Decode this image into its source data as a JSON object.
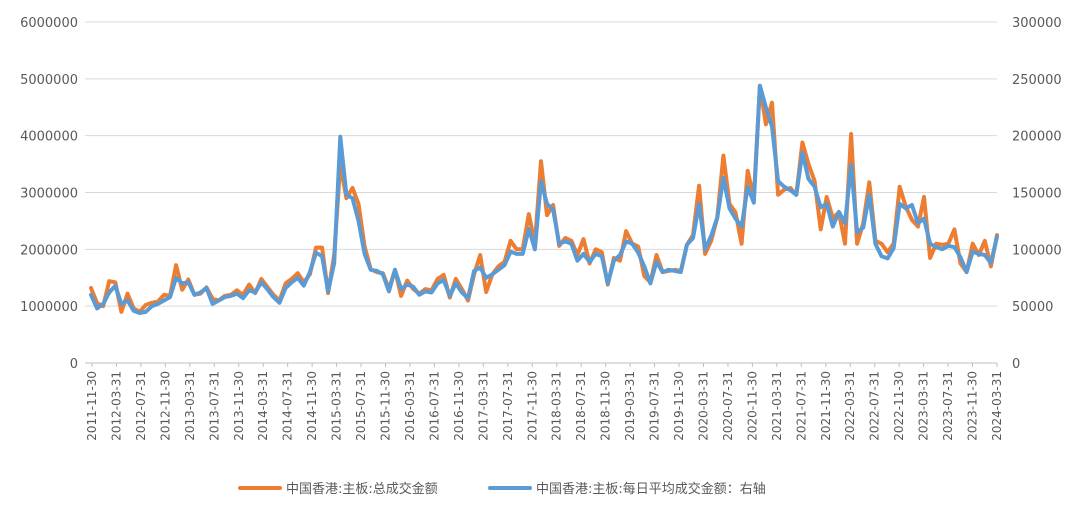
{
  "chart_data": {
    "type": "line",
    "x_tick_labels": [
      "2011-11-30",
      "2012-03-31",
      "2012-07-31",
      "2012-11-30",
      "2013-03-31",
      "2013-07-31",
      "2013-11-30",
      "2014-03-31",
      "2014-07-31",
      "2014-11-30",
      "2015-03-31",
      "2015-07-31",
      "2015-11-30",
      "2016-03-31",
      "2016-07-31",
      "2016-11-30",
      "2017-03-31",
      "2017-07-31",
      "2017-11-30",
      "2018-03-31",
      "2018-07-31",
      "2018-11-30",
      "2019-03-31",
      "2019-07-31",
      "2019-11-30",
      "2020-03-31",
      "2020-07-31",
      "2020-11-30",
      "2021-03-31",
      "2021-07-31",
      "2021-11-30",
      "2022-03-31",
      "2022-07-31",
      "2022-11-30",
      "2023-03-31",
      "2023-07-31",
      "2023-11-30",
      "2024-03-31"
    ],
    "y_left": {
      "min": 0,
      "max": 6000000,
      "ticks": [
        "0",
        "1000000",
        "2000000",
        "3000000",
        "4000000",
        "5000000",
        "6000000"
      ]
    },
    "y_right": {
      "min": 0,
      "max": 300000,
      "ticks": [
        "0",
        "50000",
        "100000",
        "150000",
        "200000",
        "250000",
        "300000"
      ]
    },
    "grid": "horizontal",
    "legend_position": "bottom",
    "series": [
      {
        "name": "中国香港:主板:总成交金额",
        "axis": "left",
        "color": "#ED7D31",
        "values": [
          1320000,
          1050000,
          1000000,
          1440000,
          1420000,
          900000,
          1220000,
          960000,
          900000,
          1020000,
          1060000,
          1080000,
          1200000,
          1180000,
          1720000,
          1290000,
          1470000,
          1200000,
          1220000,
          1330000,
          1130000,
          1100000,
          1180000,
          1200000,
          1280000,
          1200000,
          1380000,
          1230000,
          1480000,
          1340000,
          1200000,
          1100000,
          1400000,
          1480000,
          1580000,
          1420000,
          1560000,
          2030000,
          2030000,
          1230000,
          1900000,
          3500000,
          2900000,
          3080000,
          2800000,
          2050000,
          1650000,
          1600000,
          1580000,
          1300000,
          1640000,
          1180000,
          1450000,
          1300000,
          1220000,
          1300000,
          1280000,
          1480000,
          1550000,
          1150000,
          1480000,
          1300000,
          1100000,
          1560000,
          1900000,
          1250000,
          1560000,
          1700000,
          1780000,
          2150000,
          2000000,
          2000000,
          2620000,
          2100000,
          3550000,
          2600000,
          2780000,
          2060000,
          2200000,
          2150000,
          1900000,
          2180000,
          1750000,
          2000000,
          1950000,
          1380000,
          1850000,
          1800000,
          2320000,
          2100000,
          2050000,
          1530000,
          1420000,
          1900000,
          1600000,
          1620000,
          1640000,
          1620000,
          2080000,
          2250000,
          3120000,
          1920000,
          2150000,
          2560000,
          3650000,
          2800000,
          2650000,
          2100000,
          3380000,
          2900000,
          4880000,
          4200000,
          4580000,
          2960000,
          3050000,
          3080000,
          2960000,
          3880000,
          3500000,
          3200000,
          2350000,
          2920000,
          2550000,
          2650000,
          2100000,
          4030000,
          2100000,
          2460000,
          3180000,
          2150000,
          2100000,
          1950000,
          2100000,
          3100000,
          2750000,
          2520000,
          2400000,
          2920000,
          1850000,
          2100000,
          2080000,
          2100000,
          2350000,
          1750000,
          1600000,
          2100000,
          1900000,
          2150000,
          1700000,
          2250000
        ]
      },
      {
        "name": "中国香港:主板:每日平均成交金额：右轴",
        "axis": "right",
        "color": "#5B9BD5",
        "values": [
          60000,
          48000,
          52000,
          62000,
          68000,
          52000,
          55000,
          46000,
          44000,
          45000,
          50000,
          52000,
          55000,
          58000,
          75000,
          70000,
          71000,
          60000,
          62000,
          66000,
          52000,
          55000,
          58000,
          59000,
          61000,
          57000,
          64000,
          62000,
          71000,
          65000,
          58000,
          53000,
          66000,
          71000,
          75000,
          68000,
          80000,
          97000,
          94000,
          63000,
          88000,
          199000,
          148000,
          145000,
          125000,
          96000,
          82000,
          81000,
          78000,
          63000,
          82000,
          65000,
          69000,
          67000,
          60000,
          63000,
          62000,
          70000,
          73000,
          59000,
          70000,
          62000,
          57000,
          81000,
          84000,
          75000,
          78000,
          82000,
          86000,
          98000,
          96000,
          96000,
          118000,
          100000,
          160000,
          140000,
          135000,
          105000,
          107000,
          105000,
          90000,
          96000,
          89000,
          96000,
          94000,
          70000,
          90000,
          95000,
          107000,
          105000,
          97000,
          85000,
          70000,
          89000,
          80000,
          82000,
          81000,
          80000,
          104000,
          110000,
          140000,
          100000,
          112000,
          128000,
          163000,
          136000,
          127000,
          120000,
          155000,
          141000,
          244000,
          225000,
          208000,
          160000,
          155000,
          152000,
          148000,
          185000,
          162000,
          155000,
          137000,
          140000,
          120000,
          133000,
          123000,
          174000,
          115000,
          119000,
          148000,
          105000,
          94000,
          92000,
          101000,
          140000,
          136000,
          139000,
          123000,
          127000,
          105000,
          102000,
          100000,
          103000,
          102000,
          93000,
          80000,
          98000,
          96000,
          95000,
          88000,
          111000
        ]
      }
    ]
  }
}
